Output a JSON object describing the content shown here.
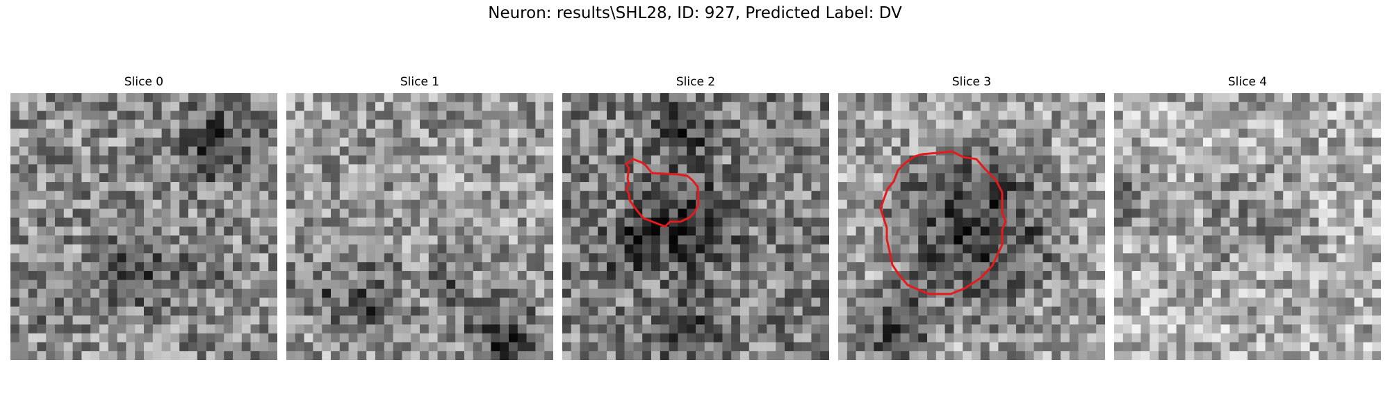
{
  "figure": {
    "title": "Neuron: results\\SHL28, ID: 927, Predicted Label: DV"
  },
  "panels": [
    {
      "title": "Slice 0",
      "has_contour": false
    },
    {
      "title": "Slice 1",
      "has_contour": false
    },
    {
      "title": "Slice 2",
      "has_contour": true
    },
    {
      "title": "Slice 3",
      "has_contour": true
    },
    {
      "title": "Slice 4",
      "has_contour": false
    }
  ],
  "colors": {
    "contour": "#e41a1c",
    "background": "#ffffff"
  }
}
